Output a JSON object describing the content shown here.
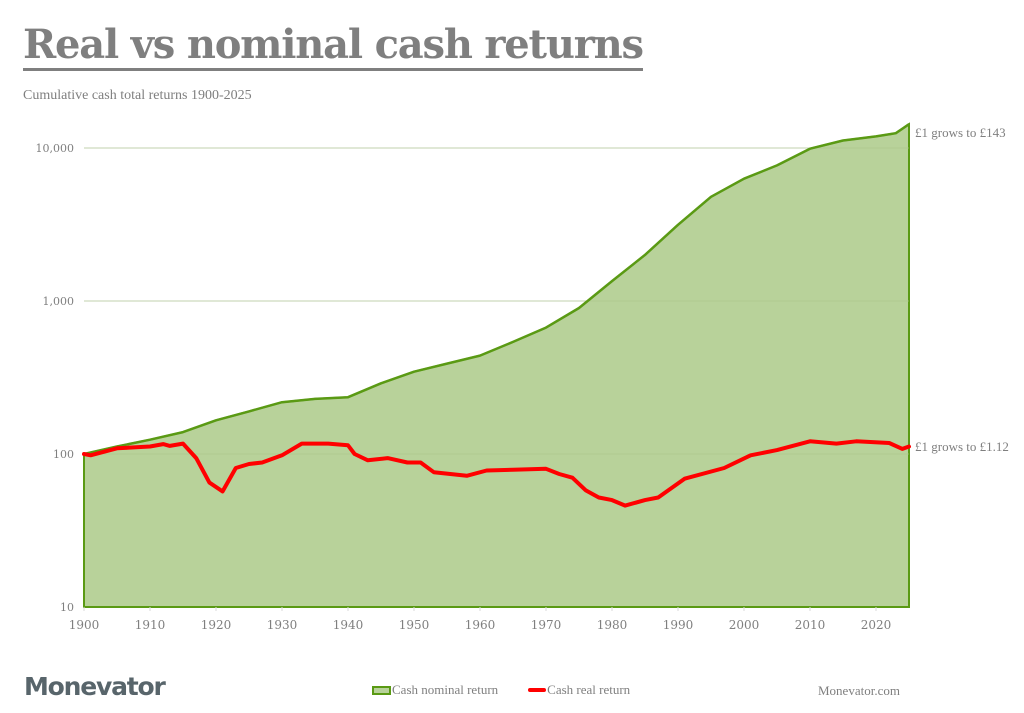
{
  "header": {
    "title": "Real vs nominal cash returns",
    "subtitle": "Cumulative cash total returns 1900-2025"
  },
  "footer": {
    "logo": "Monevator",
    "site": "Monevator.com"
  },
  "legend": [
    {
      "label": "Cash nominal return",
      "type": "area",
      "color": "#5a9a14",
      "fill": "#b8d29a"
    },
    {
      "label": "Cash real return",
      "type": "line",
      "color": "#ff0000"
    }
  ],
  "annotations": {
    "nominal_end": "£1 grows to £143",
    "real_end": "£1 grows to £1.12"
  },
  "colors": {
    "nominal_line": "#5a9a14",
    "nominal_fill": "#b8d29a",
    "real_line": "#ff0000",
    "text": "#7f7f7f",
    "gridline": "#e3e3e3",
    "logo": "#58656b"
  },
  "chart_data": {
    "type": "area",
    "title": "Real vs nominal cash returns",
    "subtitle": "Cumulative cash total returns 1900-2025",
    "xlabel": "",
    "ylabel": "",
    "yscale": "log",
    "ylim": [
      10,
      14300
    ],
    "xlim": [
      1900,
      2025
    ],
    "y_ticks": [
      10,
      100,
      1000,
      10000
    ],
    "y_tick_labels": [
      "10",
      "100",
      "1,000",
      "10,000"
    ],
    "x_ticks": [
      1900,
      1910,
      1920,
      1930,
      1940,
      1950,
      1960,
      1970,
      1980,
      1990,
      2000,
      2010,
      2020
    ],
    "x_tick_labels": [
      "1900",
      "1910",
      "1920",
      "1930",
      "1940",
      "1950",
      "1960",
      "1970",
      "1980",
      "1990",
      "2000",
      "2010",
      "2020"
    ],
    "grid": "horizontal",
    "legend_position": "bottom",
    "series": [
      {
        "name": "Cash nominal return",
        "type": "area",
        "x": [
          1900,
          1905,
          1910,
          1915,
          1920,
          1925,
          1930,
          1935,
          1940,
          1945,
          1950,
          1955,
          1960,
          1965,
          1970,
          1975,
          1980,
          1985,
          1990,
          1995,
          2000,
          2005,
          2010,
          2015,
          2020,
          2023,
          2025
        ],
        "values": [
          100,
          112,
          124,
          139,
          166,
          190,
          218,
          229,
          235,
          290,
          345,
          390,
          440,
          540,
          670,
          900,
          1350,
          2000,
          3150,
          4800,
          6300,
          7700,
          9900,
          11200,
          11900,
          12500,
          14300
        ]
      },
      {
        "name": "Cash real return",
        "type": "line",
        "x": [
          1900,
          1901,
          1905,
          1910,
          1912,
          1913,
          1915,
          1917,
          1919,
          1921,
          1923,
          1925,
          1927,
          1930,
          1933,
          1937,
          1940,
          1941,
          1943,
          1946,
          1949,
          1951,
          1953,
          1958,
          1961,
          1965,
          1970,
          1972,
          1974,
          1976,
          1978,
          1980,
          1982,
          1985,
          1987,
          1991,
          1997,
          2001,
          2005,
          2010,
          2014,
          2017,
          2022,
          2024,
          2025
        ],
        "values": [
          100,
          98,
          109,
          112,
          116,
          113,
          117,
          94,
          65,
          57,
          81,
          86,
          88,
          98,
          117,
          117,
          114,
          100,
          91,
          94,
          88,
          88,
          76,
          72,
          78,
          79,
          80,
          74,
          70,
          58,
          52,
          50,
          46,
          50,
          52,
          69,
          81,
          98,
          106,
          121,
          117,
          121,
          118,
          108,
          112
        ]
      }
    ],
    "annotations": [
      {
        "text": "£1 grows to £143",
        "series": "Cash nominal return",
        "x": 2025
      },
      {
        "text": "£1 grows to £1.12",
        "series": "Cash real return",
        "x": 2025
      }
    ]
  }
}
